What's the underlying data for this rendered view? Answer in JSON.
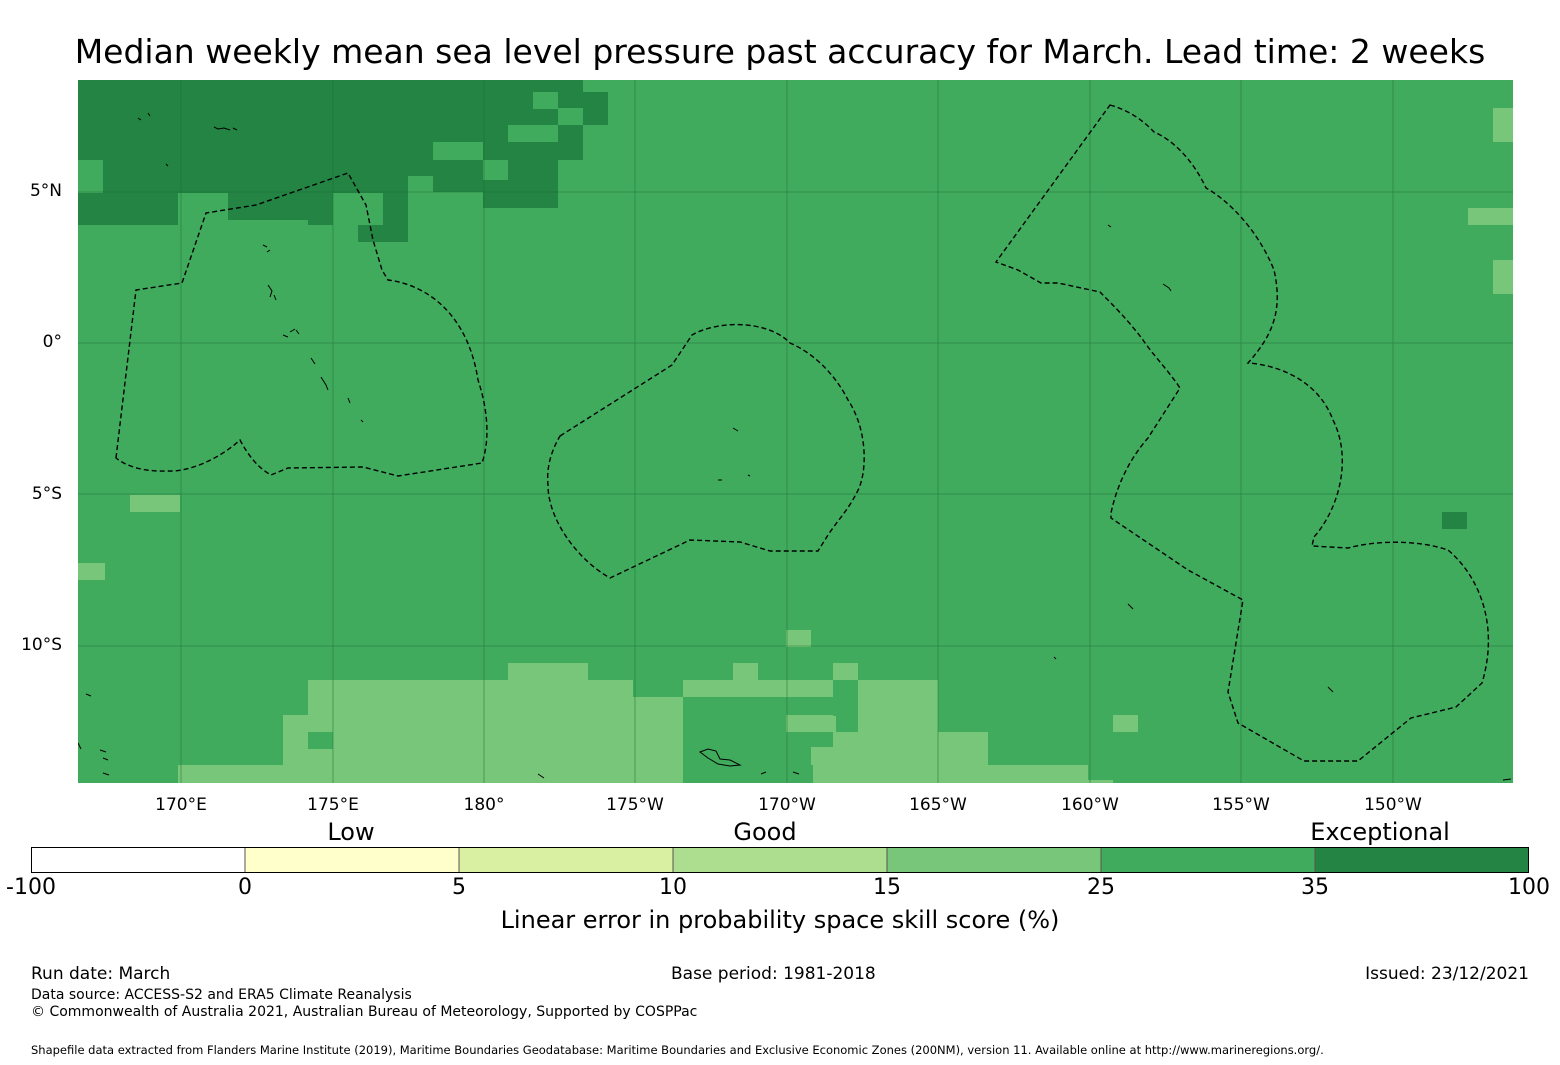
{
  "title": "Median weekly mean sea level pressure past accuracy for March. Lead time: 2 weeks",
  "map": {
    "base_color": "#41ab5d",
    "latitude_labels": [
      "5°N",
      "0°",
      "5°S",
      "10°S"
    ],
    "longitude_labels": [
      "170°E",
      "175°E",
      "180°",
      "175°W",
      "170°W",
      "165°W",
      "160°W",
      "155°W",
      "150°W"
    ]
  },
  "legend": {
    "categories": [
      "Low",
      "Good",
      "Exceptional"
    ],
    "bins": [
      {
        "from": -100,
        "to": 0,
        "color": "#ffffff"
      },
      {
        "from": 0,
        "to": 5,
        "color": "#ffffcc"
      },
      {
        "from": 5,
        "to": 10,
        "color": "#d9f0a3"
      },
      {
        "from": 10,
        "to": 15,
        "color": "#addd8e"
      },
      {
        "from": 15,
        "to": 25,
        "color": "#78c679"
      },
      {
        "from": 25,
        "to": 35,
        "color": "#41ab5d"
      },
      {
        "from": 35,
        "to": 100,
        "color": "#238443"
      }
    ],
    "tick_labels": [
      "-100",
      "0",
      "5",
      "10",
      "15",
      "25",
      "35",
      "100"
    ],
    "axis_label": "Linear error in probability space skill score (%)"
  },
  "footer": {
    "run_date": "Run date: March",
    "base_period": "Base period: 1981-2018",
    "issued": "Issued: 23/12/2021",
    "data_source": "Data source: ACCESS-S2 and ERA5 Climate Reanalysis",
    "copyright": "© Commonwealth of Australia 2021, Australian Bureau of Meteorology, Supported by COSPPac",
    "shapefile_note": "Shapefile data extracted from Flanders Marine Institute (2019), Maritime Boundaries Geodatabase: Maritime Boundaries and Exclusive Economic Zones (200NM), version 11. Available online at http://www.marineregions.org/."
  }
}
